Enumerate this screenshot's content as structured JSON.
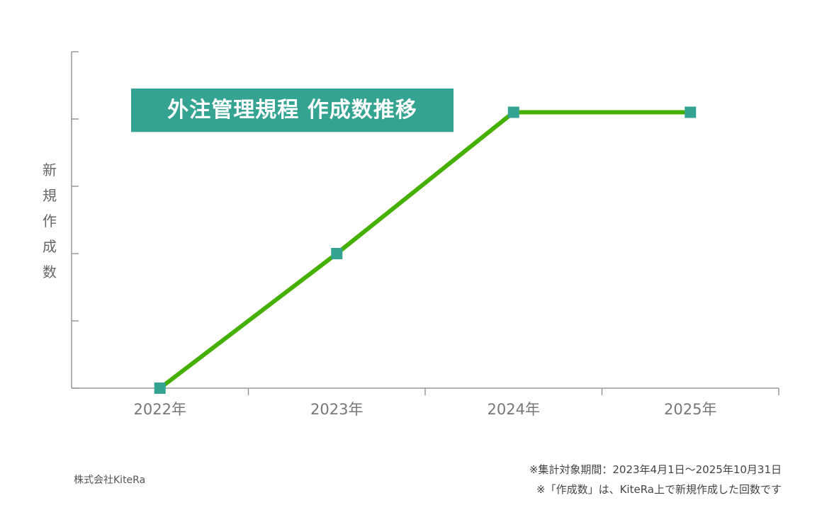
{
  "chart_data": {
    "type": "line",
    "title": "外注管理規程 作成数推移",
    "ylabel": "新規作成数",
    "xlabel": "",
    "categories": [
      "2022年",
      "2023年",
      "2024年",
      "2025年"
    ],
    "series": [
      {
        "values": [
          0,
          2,
          4.1,
          4.1
        ]
      }
    ],
    "ylim": [
      0,
      5
    ],
    "yticks": [
      0,
      1,
      2,
      3,
      4,
      5
    ],
    "ytick_labels_shown": false,
    "grid": false,
    "colors": {
      "line": "#45b000",
      "marker": "#35a391",
      "axis": "#999999",
      "title_bg": "#35a391"
    }
  },
  "footer": {
    "company": "株式会社KiteRa",
    "note1": "※集計対象期間：2023年4月1日〜2025年10月31日",
    "note2": "※「作成数」は、KiteRa上で新規作成した回数です"
  }
}
